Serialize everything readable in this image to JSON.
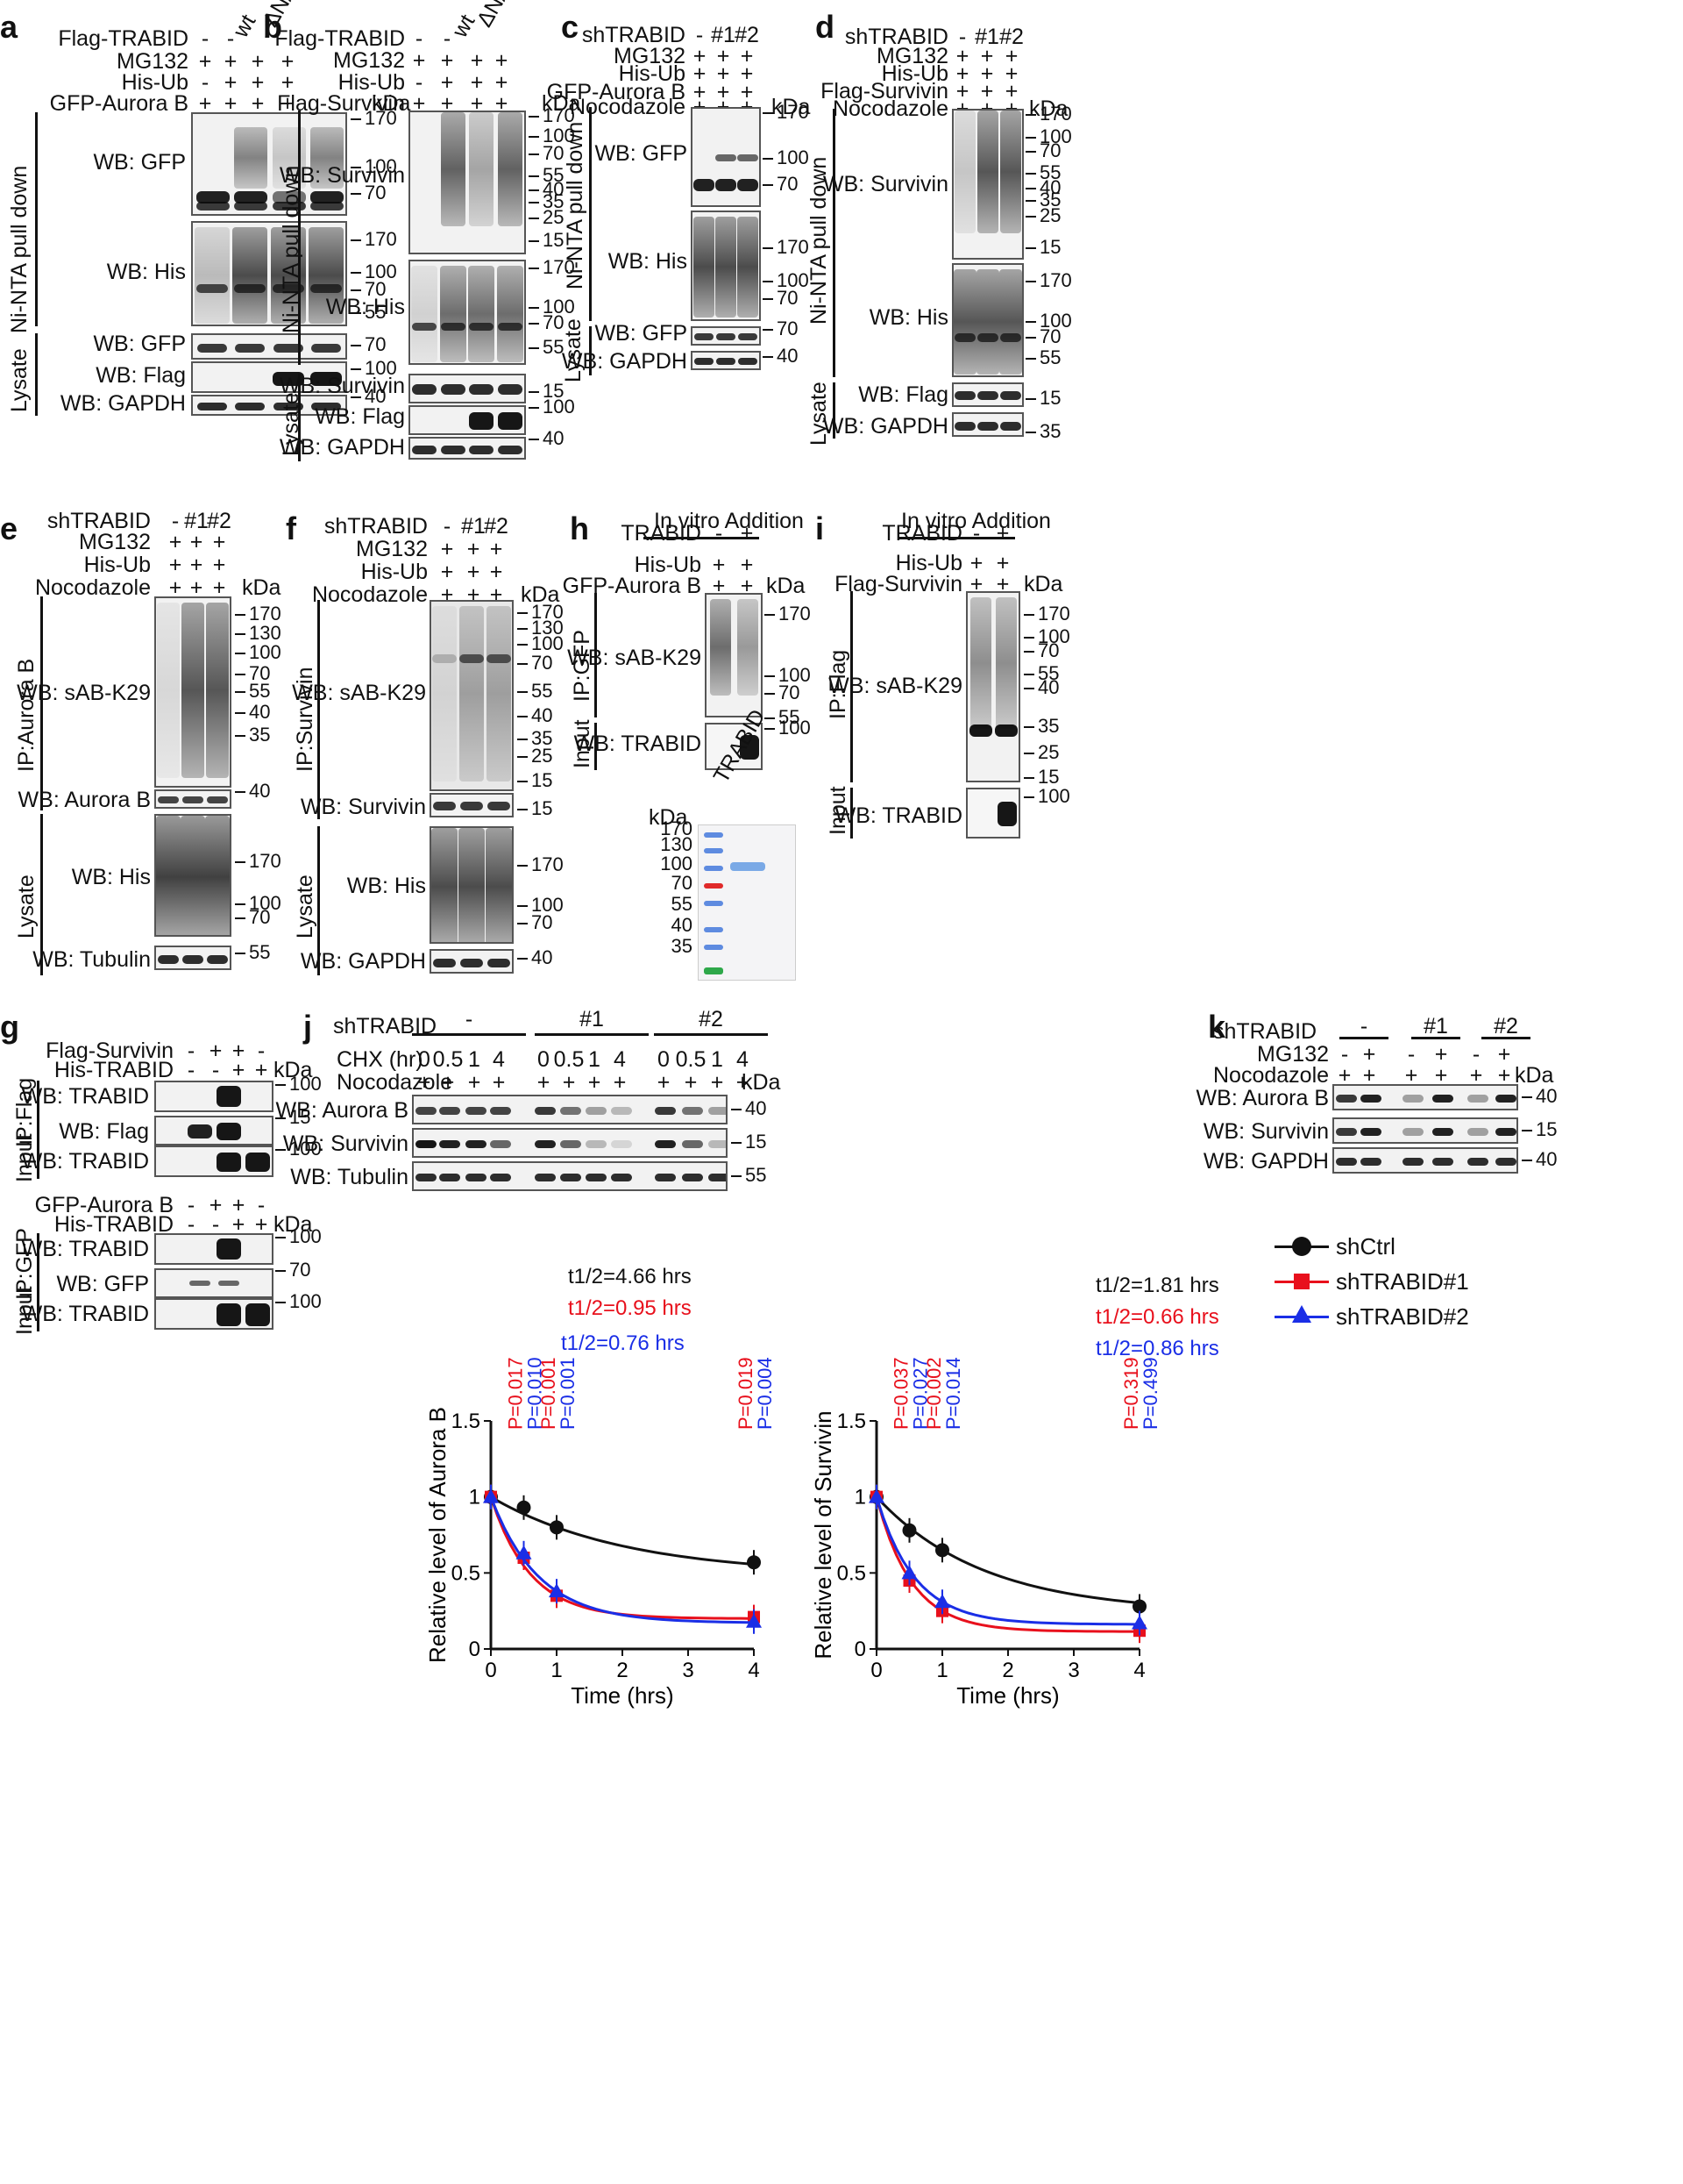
{
  "panels": {
    "a": {
      "label": "a",
      "treatments": [
        {
          "name": "Flag-TRABID",
          "values": [
            "-",
            "-",
            "wt",
            "ΔN/CS"
          ]
        },
        {
          "name": "MG132",
          "values": [
            "+",
            "+",
            "+",
            "+"
          ]
        },
        {
          "name": "His-Ub",
          "values": [
            "-",
            "+",
            "+",
            "+"
          ]
        },
        {
          "name": "GFP-Aurora B",
          "values": [
            "+",
            "+",
            "+",
            "+"
          ]
        }
      ],
      "kda": "kDa",
      "blots": [
        {
          "label": "WB: GFP",
          "markers": [
            "170",
            "100",
            "70"
          ]
        },
        {
          "label": "WB: His",
          "markers": [
            "170",
            "100",
            "70",
            "55"
          ]
        },
        {
          "label": "WB: GFP",
          "markers": [
            "70"
          ]
        },
        {
          "label": "WB: Flag",
          "markers": [
            "100"
          ]
        },
        {
          "label": "WB: GAPDH",
          "markers": [
            "40"
          ]
        }
      ],
      "groups": [
        "Ni-NTA pull down",
        "Lysate"
      ]
    },
    "b": {
      "label": "b",
      "treatments": [
        {
          "name": "Flag-TRABID",
          "values": [
            "-",
            "-",
            "wt",
            "ΔN/CS"
          ]
        },
        {
          "name": "MG132",
          "values": [
            "+",
            "+",
            "+",
            "+"
          ]
        },
        {
          "name": "His-Ub",
          "values": [
            "-",
            "+",
            "+",
            "+"
          ]
        },
        {
          "name": "Flag-Survivin",
          "values": [
            "+",
            "+",
            "+",
            "+"
          ]
        }
      ],
      "kda": "kDa",
      "blots": [
        {
          "label": "WB: Survivin",
          "markers": [
            "170",
            "100",
            "70",
            "55",
            "40",
            "35",
            "25",
            "15"
          ]
        },
        {
          "label": "WB: His",
          "markers": [
            "170",
            "100",
            "70",
            "55"
          ]
        },
        {
          "label": "WB: Survivin",
          "markers": [
            "15"
          ]
        },
        {
          "label": "WB: Flag",
          "markers": [
            "100"
          ]
        },
        {
          "label": "WB: GAPDH",
          "markers": [
            "40"
          ]
        }
      ],
      "groups": [
        "Ni-NTA pull down",
        "Lysate"
      ]
    },
    "c": {
      "label": "c",
      "treatments": [
        {
          "name": "shTRABID",
          "values": [
            "-",
            "#1",
            "#2"
          ]
        },
        {
          "name": "MG132",
          "values": [
            "+",
            "+",
            "+"
          ]
        },
        {
          "name": "His-Ub",
          "values": [
            "+",
            "+",
            "+"
          ]
        },
        {
          "name": "GFP-Aurora B",
          "values": [
            "+",
            "+",
            "+"
          ]
        },
        {
          "name": "Nocodazole",
          "values": [
            "+",
            "+",
            "+"
          ]
        }
      ],
      "kda": "kDa",
      "blots": [
        {
          "label": "WB: GFP",
          "markers": [
            "170",
            "100",
            "70"
          ]
        },
        {
          "label": "WB: His",
          "markers": [
            "170",
            "100",
            "70"
          ]
        },
        {
          "label": "WB: GFP",
          "markers": [
            "70"
          ]
        },
        {
          "label": "WB: GAPDH",
          "markers": [
            "40"
          ]
        }
      ],
      "groups": [
        "Ni-NTA pull down",
        "Lysate"
      ]
    },
    "d": {
      "label": "d",
      "treatments": [
        {
          "name": "shTRABID",
          "values": [
            "-",
            "#1",
            "#2"
          ]
        },
        {
          "name": "MG132",
          "values": [
            "+",
            "+",
            "+"
          ]
        },
        {
          "name": "His-Ub",
          "values": [
            "+",
            "+",
            "+"
          ]
        },
        {
          "name": "Flag-Survivin",
          "values": [
            "+",
            "+",
            "+"
          ]
        },
        {
          "name": "Nocodazole",
          "values": [
            "+",
            "+",
            "+"
          ]
        }
      ],
      "kda": "kDa",
      "blots": [
        {
          "label": "WB: Survivin",
          "markers": [
            "170",
            "100",
            "70",
            "55",
            "40",
            "35",
            "25",
            "15"
          ]
        },
        {
          "label": "WB: His",
          "markers": [
            "170",
            "100",
            "70",
            "55"
          ]
        },
        {
          "label": "WB: Flag",
          "markers": [
            "15"
          ]
        },
        {
          "label": "WB: GAPDH",
          "markers": [
            "35"
          ]
        }
      ],
      "groups": [
        "Ni-NTA pull down",
        "Lysate"
      ]
    },
    "e": {
      "label": "e",
      "treatments": [
        {
          "name": "shTRABID",
          "values": [
            "-",
            "#1",
            "#2"
          ]
        },
        {
          "name": "MG132",
          "values": [
            "+",
            "+",
            "+"
          ]
        },
        {
          "name": "His-Ub",
          "values": [
            "+",
            "+",
            "+"
          ]
        },
        {
          "name": "Nocodazole",
          "values": [
            "+",
            "+",
            "+"
          ]
        }
      ],
      "kda": "kDa",
      "blots": [
        {
          "label": "WB: sAB-K29",
          "markers": [
            "170",
            "130",
            "100",
            "70",
            "55",
            "40",
            "35"
          ]
        },
        {
          "label": "WB: Aurora B",
          "markers": [
            "40"
          ]
        },
        {
          "label": "WB: His",
          "markers": [
            "170",
            "100",
            "70"
          ]
        },
        {
          "label": "WB: Tubulin",
          "markers": [
            "55"
          ]
        }
      ],
      "groups": [
        "IP:Aurora B",
        "Lysate"
      ]
    },
    "f": {
      "label": "f",
      "treatments": [
        {
          "name": "shTRABID",
          "values": [
            "-",
            "#1",
            "#2"
          ]
        },
        {
          "name": "MG132",
          "values": [
            "+",
            "+",
            "+"
          ]
        },
        {
          "name": "His-Ub",
          "values": [
            "+",
            "+",
            "+"
          ]
        },
        {
          "name": "Nocodazole",
          "values": [
            "+",
            "+",
            "+"
          ]
        }
      ],
      "kda": "kDa",
      "blots": [
        {
          "label": "WB: sAB-K29",
          "markers": [
            "170",
            "130",
            "100",
            "70",
            "55",
            "40",
            "35",
            "25",
            "15"
          ]
        },
        {
          "label": "WB: Survivin",
          "markers": [
            "15"
          ]
        },
        {
          "label": "WB: His",
          "markers": [
            "170",
            "100",
            "70"
          ]
        },
        {
          "label": "WB: GAPDH",
          "markers": [
            "40"
          ]
        }
      ],
      "groups": [
        "IP:Survivin",
        "Lysate"
      ]
    },
    "h": {
      "label": "h",
      "header": "In vitro Addition",
      "treatments": [
        {
          "name": "TRABID",
          "values": [
            "-",
            "+"
          ]
        },
        {
          "name": "His-Ub",
          "values": [
            "+",
            "+"
          ]
        },
        {
          "name": "GFP-Aurora B",
          "values": [
            "+",
            "+"
          ]
        }
      ],
      "kda": "kDa",
      "blots": [
        {
          "label": "WB: sAB-K29",
          "markers": [
            "170",
            "100",
            "70",
            "55"
          ]
        },
        {
          "label": "WB: TRABID",
          "markers": [
            "100"
          ]
        }
      ],
      "groups": [
        "IP:GFP",
        "Input"
      ],
      "gel": {
        "kda": "kDa",
        "lane_label": "TRABID",
        "markers": [
          "170",
          "130",
          "100",
          "70",
          "55",
          "40",
          "35"
        ]
      }
    },
    "i": {
      "label": "i",
      "header": "In vitro Addition",
      "treatments": [
        {
          "name": "TRABID",
          "values": [
            "-",
            "+"
          ]
        },
        {
          "name": "His-Ub",
          "values": [
            "+",
            "+"
          ]
        },
        {
          "name": "Flag-Survivin",
          "values": [
            "+",
            "+"
          ]
        }
      ],
      "kda": "kDa",
      "blots": [
        {
          "label": "WB: sAB-K29",
          "markers": [
            "170",
            "100",
            "70",
            "55",
            "40",
            "35",
            "25",
            "15"
          ]
        },
        {
          "label": "WB: TRABID",
          "markers": [
            "100"
          ]
        }
      ],
      "groups": [
        "IP:Flag",
        "Input"
      ]
    },
    "g": {
      "label": "g",
      "top": {
        "treatments": [
          {
            "name": "Flag-Survivin",
            "values": [
              "-",
              "+",
              "+",
              "-"
            ]
          },
          {
            "name": "His-TRABID",
            "values": [
              "-",
              "-",
              "+",
              "+"
            ]
          }
        ],
        "kda": "kDa",
        "blots": [
          {
            "label": "WB: TRABID",
            "markers": [
              "100"
            ]
          },
          {
            "label": "WB: Flag",
            "markers": [
              "15"
            ]
          },
          {
            "label": "WB: TRABID",
            "markers": [
              "100"
            ]
          }
        ],
        "groups": [
          "IP:Flag",
          "Input"
        ]
      },
      "bottom": {
        "treatments": [
          {
            "name": "GFP-Aurora B",
            "values": [
              "-",
              "+",
              "+",
              "-"
            ]
          },
          {
            "name": "His-TRABID",
            "values": [
              "-",
              "-",
              "+",
              "+"
            ]
          }
        ],
        "kda": "kDa",
        "blots": [
          {
            "label": "WB: TRABID",
            "markers": [
              "100"
            ]
          },
          {
            "label": "WB: GFP",
            "markers": [
              "70"
            ]
          },
          {
            "label": "WB: TRABID",
            "markers": [
              "100"
            ]
          }
        ],
        "groups": [
          "IP:GFP",
          "Input"
        ]
      }
    },
    "j": {
      "label": "j",
      "groups": [
        {
          "name": "shTRABID",
          "values": [
            "-",
            "#1",
            "#2"
          ]
        }
      ],
      "chx_label": "CHX (hr)",
      "chx": [
        "0",
        "0.5",
        "1",
        "4",
        "0",
        "0.5",
        "1",
        "4",
        "0",
        "0.5",
        "1",
        "4"
      ],
      "noco_label": "Nocodazole",
      "noco": [
        "+",
        "+",
        "+",
        "+",
        "+",
        "+",
        "+",
        "+",
        "+",
        "+",
        "+",
        "+"
      ],
      "kda": "kDa",
      "blots": [
        {
          "label": "WB: Aurora B",
          "markers": [
            "40"
          ]
        },
        {
          "label": "WB: Survivin",
          "markers": [
            "15"
          ]
        },
        {
          "label": "WB: Tubulin",
          "markers": [
            "55"
          ]
        }
      ]
    },
    "k": {
      "label": "k",
      "groups": [
        {
          "name": "shTRABID",
          "values": [
            "-",
            "#1",
            "#2"
          ]
        }
      ],
      "mg132_label": "MG132",
      "mg132": [
        "-",
        "+",
        "-",
        "+",
        "-",
        "+"
      ],
      "noco_label": "Nocodazole",
      "noco": [
        "+",
        "+",
        "+",
        "+",
        "+",
        "+"
      ],
      "kda": "kDa",
      "blots": [
        {
          "label": "WB: Aurora B",
          "markers": [
            "40"
          ]
        },
        {
          "label": "WB: Survivin",
          "markers": [
            "15"
          ]
        },
        {
          "label": "WB: GAPDH",
          "markers": [
            "40"
          ]
        }
      ]
    }
  },
  "legend": [
    "shCtrl",
    "shTRABID#1",
    "shTRABID#2"
  ],
  "colors": {
    "shCtrl": "#111111",
    "shTRABID#1": "#e8101c",
    "shTRABID#2": "#1a2ee6"
  },
  "chart_data": [
    {
      "type": "line",
      "ylabel": "Relative level of Aurora B",
      "xlabel": "Time (hrs)",
      "xlim": [
        0,
        4
      ],
      "ylim": [
        0,
        1.5
      ],
      "xticks": [
        0,
        1,
        2,
        3,
        4
      ],
      "yticks": [
        0,
        0.5,
        1.0,
        1.5
      ],
      "x": [
        0,
        0.5,
        1,
        4
      ],
      "series": [
        {
          "name": "shCtrl",
          "values": [
            1.0,
            0.93,
            0.8,
            0.57
          ],
          "halflife": "t1/2=4.66 hrs"
        },
        {
          "name": "shTRABID#1",
          "values": [
            1.0,
            0.6,
            0.35,
            0.21
          ],
          "halflife": "t1/2=0.95 hrs"
        },
        {
          "name": "shTRABID#2",
          "values": [
            1.0,
            0.63,
            0.38,
            0.18
          ],
          "halflife": "t1/2=0.76 hrs"
        }
      ],
      "pvalues": [
        {
          "x": 0.5,
          "red": "P=0.017",
          "blue": "P=0.010"
        },
        {
          "x": 1,
          "red": "P=0.001",
          "blue": "P=0.001"
        },
        {
          "x": 4,
          "red": "P=0.019",
          "blue": "P=0.004"
        }
      ]
    },
    {
      "type": "line",
      "ylabel": "Relative level of Survivin",
      "xlabel": "Time (hrs)",
      "xlim": [
        0,
        4
      ],
      "ylim": [
        0,
        1.5
      ],
      "xticks": [
        0,
        1,
        2,
        3,
        4
      ],
      "yticks": [
        0,
        0.5,
        1.0,
        1.5
      ],
      "x": [
        0,
        0.5,
        1,
        4
      ],
      "series": [
        {
          "name": "shCtrl",
          "values": [
            1.0,
            0.78,
            0.65,
            0.28
          ],
          "halflife": "t1/2=1.81 hrs"
        },
        {
          "name": "shTRABID#1",
          "values": [
            1.0,
            0.45,
            0.25,
            0.12
          ],
          "halflife": "t1/2=0.66 hrs"
        },
        {
          "name": "shTRABID#2",
          "values": [
            1.0,
            0.5,
            0.31,
            0.17
          ],
          "halflife": "t1/2=0.86 hrs"
        }
      ],
      "pvalues": [
        {
          "x": 0.5,
          "red": "P=0.037",
          "blue": "P=0.027"
        },
        {
          "x": 1,
          "red": "P=0.002",
          "blue": "P=0.014"
        },
        {
          "x": 4,
          "red": "P=0.319",
          "blue": "P=0.499"
        }
      ]
    }
  ]
}
